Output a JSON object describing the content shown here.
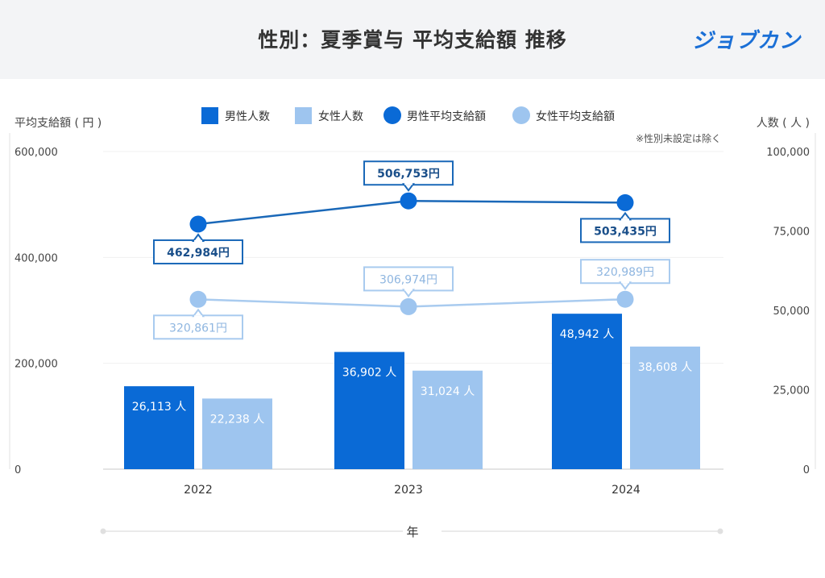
{
  "header": {
    "title": "性別：夏季賞与 平均支給額 推移",
    "logo_text": "ジョブカン"
  },
  "colors": {
    "male": "#0a6ad6",
    "female": "#9ec5ef",
    "male_line": "#1a68b8",
    "female_line": "#a9cbef"
  },
  "chart_data": {
    "type": "bar",
    "categories": [
      "2022",
      "2023",
      "2024"
    ],
    "series": [
      {
        "name": "男性人数",
        "kind": "bar",
        "axis": "right",
        "values": [
          26113,
          36902,
          48942
        ],
        "labels": [
          "26,113 人",
          "36,902 人",
          "48,942 人"
        ]
      },
      {
        "name": "女性人数",
        "kind": "bar",
        "axis": "right",
        "values": [
          22238,
          31024,
          38608
        ],
        "labels": [
          "22,238 人",
          "31,024 人",
          "38,608 人"
        ]
      },
      {
        "name": "男性平均支給額",
        "kind": "line",
        "axis": "left",
        "values": [
          462984,
          506753,
          503435
        ],
        "labels": [
          "462,984円",
          "506,753円",
          "503,435円"
        ]
      },
      {
        "name": "女性平均支給額",
        "kind": "line",
        "axis": "left",
        "values": [
          320861,
          306974,
          320989
        ],
        "labels": [
          "320,861円",
          "306,974円",
          "320,989円"
        ]
      }
    ],
    "y_left": {
      "label": "平均支給額 ( 円 )",
      "ticks": [
        "0",
        "200,000",
        "400,000",
        "600,000"
      ],
      "range": [
        0,
        600000
      ]
    },
    "y_right": {
      "label": "人数 ( 人 )",
      "ticks": [
        "0",
        "25,000",
        "50,000",
        "75,000",
        "100,000"
      ],
      "range": [
        0,
        100000
      ]
    },
    "xlabel": "年",
    "note": "※性別未設定は除く",
    "legend_position": "top",
    "grid": true
  }
}
